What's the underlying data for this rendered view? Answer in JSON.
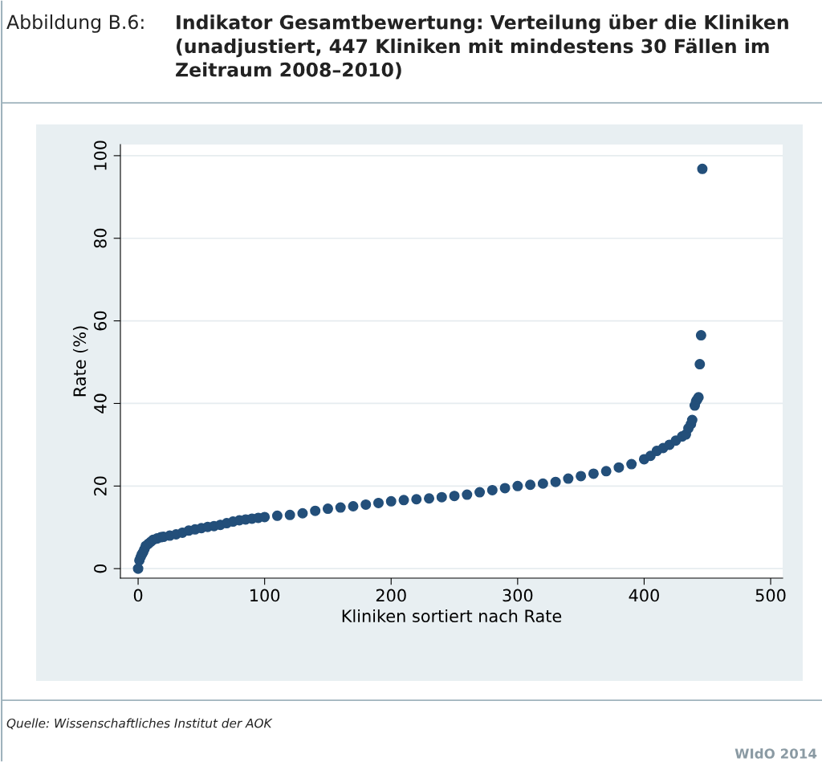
{
  "chart_data": {
    "type": "scatter",
    "title": "Indikator Gesamtbewertung: Verteilung über die Kliniken (unadjustiert, 447 Kliniken mit mindestens 30 Fällen im Zeitraum 2008–2010)",
    "xlabel": "Kliniken sortiert nach Rate",
    "ylabel": "Rate (%)",
    "annotations": [
      "Abbildung B.6:",
      "Quelle: Wissenschaftliches Institut der AOK",
      "WIdO 2014"
    ],
    "series": [
      {
        "color": "#234f7a",
        "x": [
          0,
          1,
          2,
          3,
          4,
          5,
          6,
          8,
          10,
          12,
          15,
          18,
          20,
          25,
          30,
          35,
          40,
          45,
          50,
          55,
          60,
          65,
          70,
          75,
          80,
          85,
          90,
          95,
          100,
          110,
          120,
          130,
          140,
          150,
          160,
          170,
          180,
          190,
          200,
          210,
          220,
          230,
          240,
          250,
          260,
          270,
          280,
          290,
          300,
          310,
          320,
          330,
          340,
          350,
          360,
          370,
          380,
          390,
          400,
          405,
          410,
          415,
          420,
          425,
          430,
          433,
          435,
          437,
          438,
          440,
          441,
          442,
          443,
          444,
          445,
          446
        ],
        "values": [
          0,
          2,
          2.8,
          3.5,
          4,
          4.7,
          5.5,
          6,
          6.5,
          7,
          7.3,
          7.6,
          7.7,
          8,
          8.3,
          8.7,
          9.2,
          9.5,
          9.8,
          10.1,
          10.3,
          10.6,
          11,
          11.4,
          11.7,
          11.9,
          12.1,
          12.3,
          12.5,
          12.8,
          13,
          13.4,
          14,
          14.5,
          14.8,
          15.1,
          15.5,
          15.9,
          16.3,
          16.6,
          16.8,
          17,
          17.3,
          17.6,
          17.9,
          18.5,
          19,
          19.5,
          20,
          20.3,
          20.6,
          21,
          21.8,
          22.4,
          23,
          23.6,
          24.5,
          25.3,
          26.5,
          27.3,
          28.5,
          29.2,
          30,
          31,
          32,
          32.5,
          34,
          35,
          36,
          39.5,
          40.5,
          41,
          41.5,
          49.5,
          56.5,
          96.8
        ]
      }
    ],
    "marker": "circle",
    "xlim": [
      -14,
      509.5
    ],
    "ylim": [
      -2.3,
      102.7
    ],
    "xticks": [
      0,
      100,
      200,
      300,
      400,
      500
    ],
    "yticks": [
      0,
      20,
      40,
      60,
      80,
      100
    ],
    "grid": "y",
    "legend": false
  }
}
